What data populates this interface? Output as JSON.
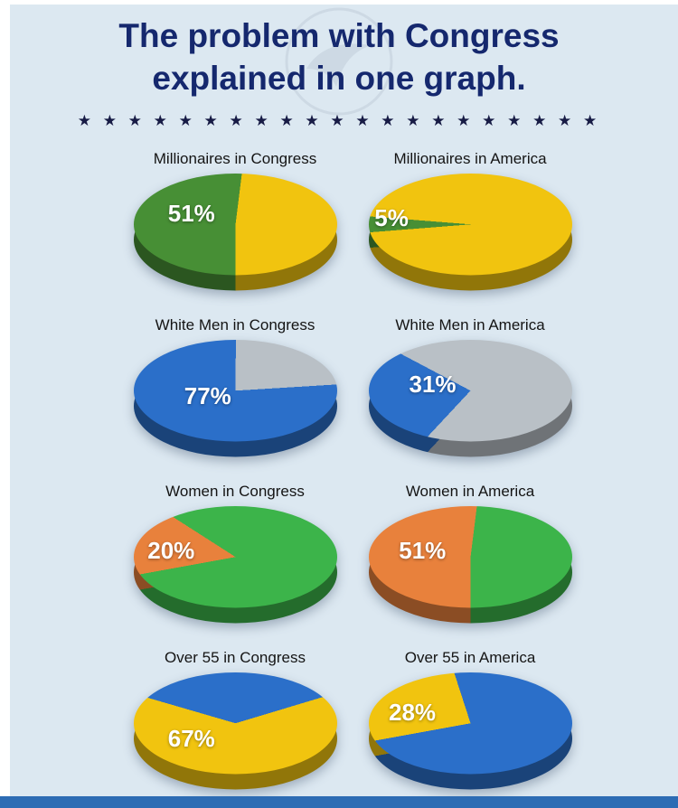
{
  "header": {
    "title_line1": "The problem with Congress",
    "title_line2": "explained in one graph.",
    "stars": "★ ★ ★ ★ ★ ★ ★ ★ ★ ★ ★ ★ ★ ★ ★ ★ ★ ★ ★ ★ ★"
  },
  "colors": {
    "background": "#dce8f1",
    "title_text": "#15286e",
    "stars_text": "#171b45",
    "bottom_bar": "#2d6cb4",
    "edge_strip": "#ffffff",
    "percent_label_text": "#ffffff",
    "chart_title_text": "#141414"
  },
  "chart_data": {
    "type": "pie",
    "layout": "2x4 grid: left column Congress, right column America; 3D tilted pie style; white percent label on highlighted slice",
    "pies": [
      {
        "title": "Millionaires in Congress",
        "value": 51,
        "label": "51%",
        "slice_color": "#478f35",
        "rest_color": "#f1c40f",
        "start_deg": 180,
        "label_x": "17%",
        "label_y": "22%"
      },
      {
        "title": "Millionaires in America",
        "value": 5,
        "label": "5%",
        "slice_color": "#478f35",
        "rest_color": "#f1c40f",
        "start_deg": 261,
        "label_x": "3%",
        "label_y": "26%"
      },
      {
        "title": "White Men in Congress",
        "value": 77,
        "label": "77%",
        "slice_color": "#2b6fc9",
        "rest_color": "#b9c0c6",
        "start_deg": 83,
        "label_x": "25%",
        "label_y": "36%"
      },
      {
        "title": "White Men in America",
        "value": 31,
        "label": "31%",
        "slice_color": "#2b6fc9",
        "rest_color": "#b9c0c6",
        "start_deg": 205,
        "label_x": "20%",
        "label_y": "26%"
      },
      {
        "title": "Women in Congress",
        "value": 20,
        "label": "20%",
        "slice_color": "#e8813c",
        "rest_color": "#3cb44a",
        "start_deg": 250,
        "label_x": "7%",
        "label_y": "26%"
      },
      {
        "title": "Women in America",
        "value": 51,
        "label": "51%",
        "slice_color": "#e8813c",
        "rest_color": "#3cb44a",
        "start_deg": 180,
        "label_x": "15%",
        "label_y": "26%"
      },
      {
        "title": "Over 55 in Congress",
        "value": 67,
        "label": "67%",
        "slice_color": "#f1c40f",
        "rest_color": "#2b6fc9",
        "start_deg": 59,
        "label_x": "17%",
        "label_y": "44%"
      },
      {
        "title": "Over 55 in America",
        "value": 28,
        "label": "28%",
        "slice_color": "#f1c40f",
        "rest_color": "#2b6fc9",
        "start_deg": 250,
        "label_x": "10%",
        "label_y": "22%"
      }
    ]
  }
}
